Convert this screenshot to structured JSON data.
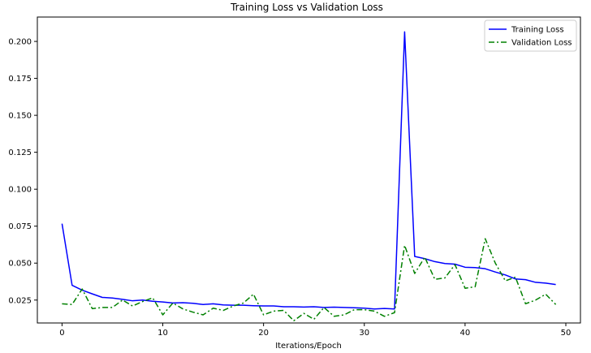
{
  "chart_data": {
    "type": "line",
    "title": "Training Loss vs Validation Loss",
    "xlabel": "Iterations/Epoch",
    "ylabel": "",
    "xlim": [
      -2.45,
      51.45
    ],
    "ylim": [
      0.0095,
      0.2165
    ],
    "x_ticks": [
      0,
      10,
      20,
      30,
      40,
      50
    ],
    "x_tick_labels": [
      "0",
      "10",
      "20",
      "30",
      "40",
      "50"
    ],
    "y_ticks": [
      0.025,
      0.05,
      0.075,
      0.1,
      0.125,
      0.15,
      0.175,
      0.2
    ],
    "y_tick_labels": [
      "0.025",
      "0.050",
      "0.075",
      "0.100",
      "0.125",
      "0.150",
      "0.175",
      "0.200"
    ],
    "grid": false,
    "legend_position": "top-right",
    "x": [
      0,
      1,
      2,
      3,
      4,
      5,
      6,
      7,
      8,
      9,
      10,
      11,
      12,
      13,
      14,
      15,
      16,
      17,
      18,
      19,
      20,
      21,
      22,
      23,
      24,
      25,
      26,
      27,
      28,
      29,
      30,
      31,
      32,
      33,
      34,
      35,
      36,
      37,
      38,
      39,
      40,
      41,
      42,
      43,
      44,
      45,
      46,
      47,
      48,
      49
    ],
    "series": [
      {
        "name": "Training Loss",
        "color": "#0000ff",
        "style": "solid",
        "values": [
          0.0767,
          0.035,
          0.0317,
          0.0292,
          0.0268,
          0.0264,
          0.0255,
          0.0245,
          0.025,
          0.0242,
          0.0237,
          0.023,
          0.0232,
          0.0228,
          0.022,
          0.0225,
          0.0217,
          0.0215,
          0.0215,
          0.0212,
          0.021,
          0.021,
          0.0205,
          0.0205,
          0.0203,
          0.0205,
          0.02,
          0.0202,
          0.02,
          0.0198,
          0.0195,
          0.019,
          0.0193,
          0.019,
          0.2065,
          0.0545,
          0.053,
          0.051,
          0.0497,
          0.0493,
          0.0472,
          0.047,
          0.0462,
          0.044,
          0.042,
          0.0393,
          0.0388,
          0.037,
          0.0365,
          0.0355
        ]
      },
      {
        "name": "Validation Loss",
        "color": "#008000",
        "style": "dashdot",
        "values": [
          0.0225,
          0.022,
          0.0325,
          0.0192,
          0.02,
          0.02,
          0.025,
          0.021,
          0.024,
          0.0265,
          0.015,
          0.023,
          0.019,
          0.0168,
          0.015,
          0.0195,
          0.018,
          0.021,
          0.023,
          0.029,
          0.015,
          0.0175,
          0.018,
          0.011,
          0.016,
          0.012,
          0.02,
          0.014,
          0.015,
          0.0185,
          0.0185,
          0.0175,
          0.014,
          0.0165,
          0.062,
          0.043,
          0.054,
          0.039,
          0.04,
          0.049,
          0.033,
          0.034,
          0.0665,
          0.05,
          0.038,
          0.0405,
          0.0225,
          0.025,
          0.029,
          0.022
        ]
      }
    ]
  }
}
